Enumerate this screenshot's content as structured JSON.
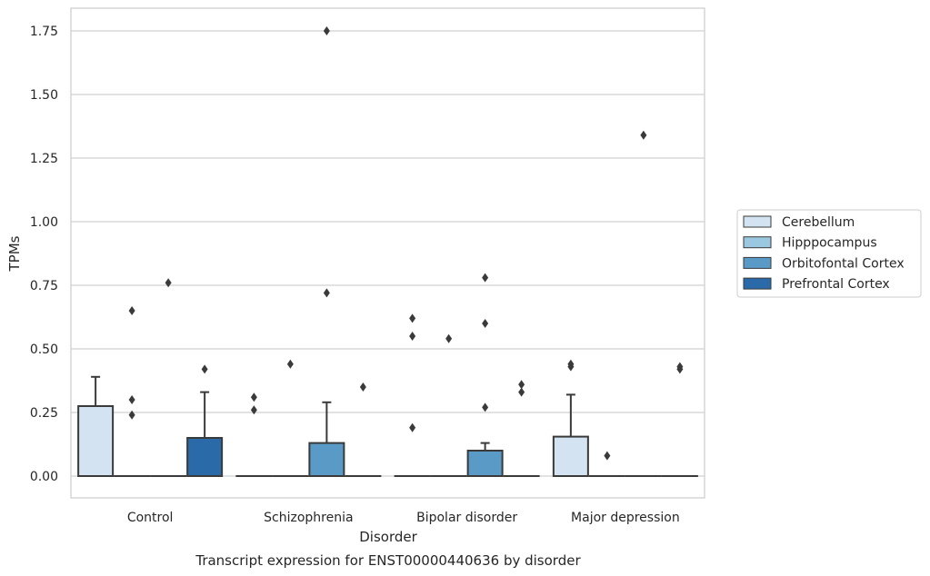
{
  "chart_data": {
    "type": "boxplot",
    "xlabel": "Disorder",
    "ylabel": "TPMs",
    "caption": "Transcript expression for ENST00000440636 by disorder",
    "categories": [
      "Control",
      "Schizophrenia",
      "Bipolar disorder",
      "Major depression"
    ],
    "ylim": [
      -0.085,
      1.84
    ],
    "yticks": [
      0.0,
      0.25,
      0.5,
      0.75,
      1.0,
      1.25,
      1.5,
      1.75
    ],
    "ytick_labels": [
      "0.00",
      "0.25",
      "0.50",
      "0.75",
      "1.00",
      "1.25",
      "1.50",
      "1.75"
    ],
    "grid": "horizontal",
    "legend_position": "right",
    "series": [
      {
        "name": "Cerebellum",
        "color": "#d3e3f1",
        "boxes": [
          {
            "q1": 0.0,
            "median": 0.0,
            "q3": 0.275,
            "whisker_low": 0.0,
            "whisker_high": 0.39,
            "outliers": []
          },
          {
            "q1": 0.0,
            "median": 0.0,
            "q3": 0.0,
            "whisker_low": 0.0,
            "whisker_high": 0.0,
            "outliers": [
              0.26,
              0.31
            ]
          },
          {
            "q1": 0.0,
            "median": 0.0,
            "q3": 0.0,
            "whisker_low": 0.0,
            "whisker_high": 0.0,
            "outliers": [
              0.19,
              0.55,
              0.62
            ]
          },
          {
            "q1": 0.0,
            "median": 0.0,
            "q3": 0.155,
            "whisker_low": 0.0,
            "whisker_high": 0.32,
            "outliers": [
              0.43,
              0.44
            ]
          }
        ]
      },
      {
        "name": "Hipppocampus",
        "color": "#9ac8e0",
        "boxes": [
          {
            "q1": 0.0,
            "median": 0.0,
            "q3": 0.0,
            "whisker_low": 0.0,
            "whisker_high": 0.0,
            "outliers": [
              0.24,
              0.3,
              0.65
            ]
          },
          {
            "q1": 0.0,
            "median": 0.0,
            "q3": 0.0,
            "whisker_low": 0.0,
            "whisker_high": 0.0,
            "outliers": [
              0.44
            ]
          },
          {
            "q1": 0.0,
            "median": 0.0,
            "q3": 0.0,
            "whisker_low": 0.0,
            "whisker_high": 0.0,
            "outliers": [
              0.54
            ]
          },
          {
            "q1": 0.0,
            "median": 0.0,
            "q3": 0.0,
            "whisker_low": 0.0,
            "whisker_high": 0.0,
            "outliers": [
              0.08
            ]
          }
        ]
      },
      {
        "name": "Orbitofontal Cortex",
        "color": "#5a9ac7",
        "boxes": [
          {
            "q1": 0.0,
            "median": 0.0,
            "q3": 0.0,
            "whisker_low": 0.0,
            "whisker_high": 0.0,
            "outliers": [
              0.76
            ]
          },
          {
            "q1": 0.0,
            "median": 0.0,
            "q3": 0.13,
            "whisker_low": 0.0,
            "whisker_high": 0.29,
            "outliers": [
              0.72,
              1.75
            ]
          },
          {
            "q1": 0.0,
            "median": 0.0,
            "q3": 0.1,
            "whisker_low": 0.0,
            "whisker_high": 0.13,
            "outliers": [
              0.27,
              0.6,
              0.78
            ]
          },
          {
            "q1": 0.0,
            "median": 0.0,
            "q3": 0.0,
            "whisker_low": 0.0,
            "whisker_high": 0.0,
            "outliers": [
              1.34
            ]
          }
        ]
      },
      {
        "name": "Prefrontal Cortex",
        "color": "#2a6aa8",
        "boxes": [
          {
            "q1": 0.0,
            "median": 0.0,
            "q3": 0.15,
            "whisker_low": 0.0,
            "whisker_high": 0.33,
            "outliers": [
              0.42
            ]
          },
          {
            "q1": 0.0,
            "median": 0.0,
            "q3": 0.0,
            "whisker_low": 0.0,
            "whisker_high": 0.0,
            "outliers": [
              0.35
            ]
          },
          {
            "q1": 0.0,
            "median": 0.0,
            "q3": 0.0,
            "whisker_low": 0.0,
            "whisker_high": 0.0,
            "outliers": [
              0.33,
              0.36
            ]
          },
          {
            "q1": 0.0,
            "median": 0.0,
            "q3": 0.0,
            "whisker_low": 0.0,
            "whisker_high": 0.0,
            "outliers": [
              0.42,
              0.43
            ]
          }
        ]
      }
    ]
  }
}
